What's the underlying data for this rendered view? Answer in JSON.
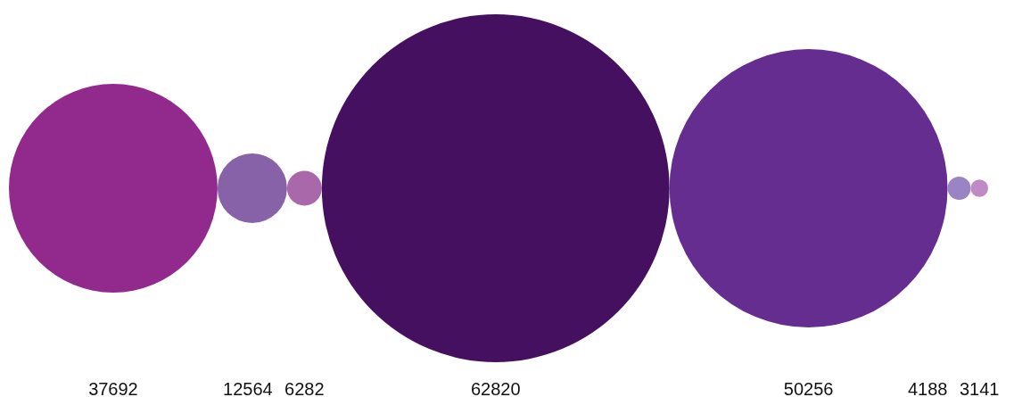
{
  "chart_data": {
    "type": "other",
    "categories": [
      null,
      null,
      null,
      null,
      null,
      null,
      null
    ],
    "values": [
      37692,
      12564,
      6282,
      62820,
      50256,
      4188,
      3141
    ],
    "colors": [
      "#922a8e",
      "#8862a9",
      "#a868a9",
      "#45105f",
      "#662d91",
      "#9b84c4",
      "#c08bc4"
    ],
    "data_labels": true
  }
}
